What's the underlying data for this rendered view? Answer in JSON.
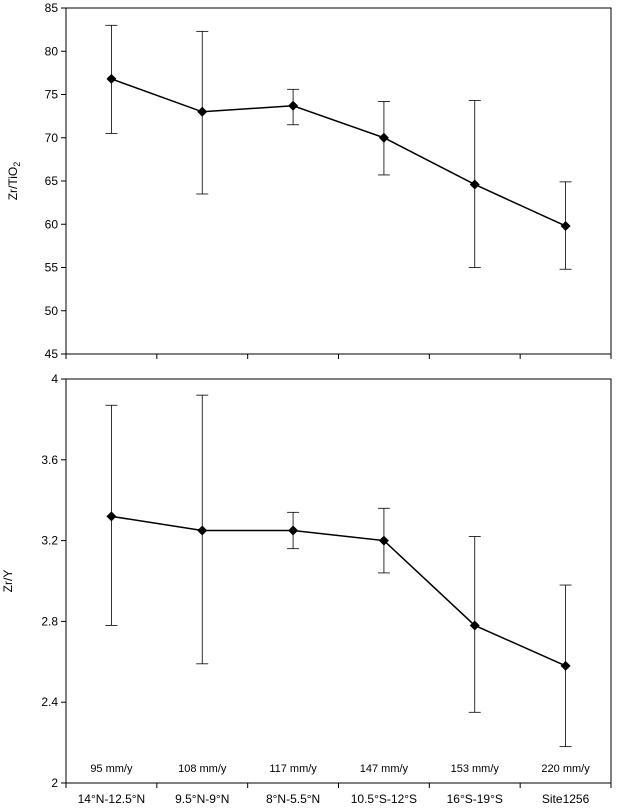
{
  "chart_data": [
    {
      "type": "line",
      "ylabel": "Zr/TiO",
      "ylabel_sub": "2",
      "ylim": [
        45,
        85
      ],
      "yticks": [
        "45",
        "50",
        "55",
        "60",
        "65",
        "70",
        "75",
        "80",
        "85"
      ],
      "categories": [
        "14°N-12.5°N",
        "9.5°N-9°N",
        "8°N-5.5°N",
        "10.5°S-12°S",
        "16°S-19°S",
        "Site1256"
      ],
      "series": [
        {
          "values": [
            76.8,
            73.0,
            73.7,
            70.0,
            64.6,
            59.8
          ],
          "err_high": [
            83.0,
            82.3,
            75.6,
            74.2,
            74.3,
            64.9
          ],
          "err_low": [
            70.5,
            63.5,
            71.5,
            65.7,
            55.0,
            54.8
          ]
        }
      ]
    },
    {
      "type": "line",
      "ylabel": "Zr/Y",
      "ylim": [
        2.0,
        4.0
      ],
      "yticks": [
        "2",
        "2.4",
        "2.8",
        "3.2",
        "3.6",
        "4"
      ],
      "categories": [
        "14°N-12.5°N",
        "9.5°N-9°N",
        "8°N-5.5°N",
        "10.5°S-12°S",
        "16°S-19°S",
        "Site1256"
      ],
      "rate_labels": [
        "95 mm/y",
        "108 mm/y",
        "117 mm/y",
        "147 mm/y",
        "153 mm/y",
        "220 mm/y"
      ],
      "series": [
        {
          "values": [
            3.32,
            3.25,
            3.25,
            3.2,
            2.78,
            2.58
          ],
          "err_high": [
            3.87,
            3.92,
            3.34,
            3.36,
            3.22,
            2.98
          ],
          "err_low": [
            2.78,
            2.59,
            3.16,
            3.04,
            2.35,
            2.18
          ]
        }
      ]
    }
  ]
}
